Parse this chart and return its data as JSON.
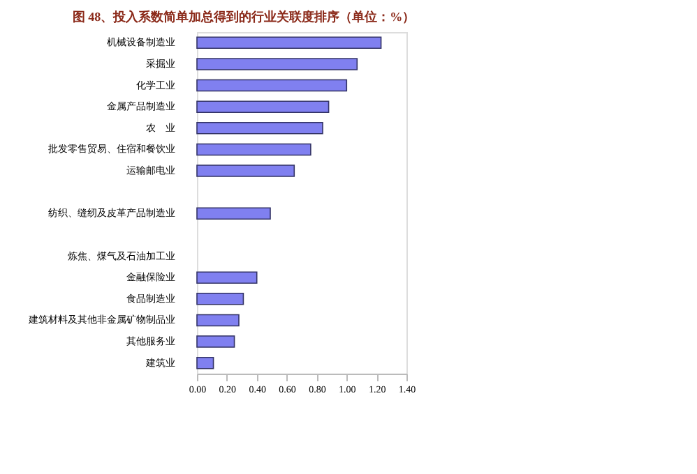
{
  "chart_data": {
    "type": "bar",
    "orientation": "horizontal",
    "title": "图 48、投入系数简单加总得到的行业关联度排序（单位：%）",
    "categories": [
      "机械设备制造业",
      "采掘业",
      "化学工业",
      "金属产品制造业",
      "农　业",
      "批发零售贸易、住宿和餐饮业",
      "运输邮电业",
      null,
      "纺织、缝纫及皮革产品制造业",
      null,
      "炼焦、煤气及石油加工业",
      "金融保险业",
      "食品制造业",
      "建筑材料及其他非金属矿物制品业",
      "其他服务业",
      "建筑业"
    ],
    "values": [
      1.23,
      1.07,
      1.0,
      0.88,
      0.84,
      0.76,
      0.65,
      null,
      0.49,
      null,
      null,
      0.4,
      0.31,
      0.28,
      0.25,
      0.11
    ],
    "color": "#8080f0",
    "xlim": [
      0,
      1.4
    ],
    "xticks": [
      {
        "value": 0,
        "label": "0.00"
      },
      {
        "value": 0.2,
        "label": "0.20"
      },
      {
        "value": 0.4,
        "label": "0.40"
      },
      {
        "value": 0.6,
        "label": "0.60"
      },
      {
        "value": 0.8,
        "label": "0.80"
      },
      {
        "value": 1.0,
        "label": "1.00"
      },
      {
        "value": 1.2,
        "label": "1.20"
      },
      {
        "value": 1.4,
        "label": "1.40"
      }
    ],
    "grid": false
  }
}
